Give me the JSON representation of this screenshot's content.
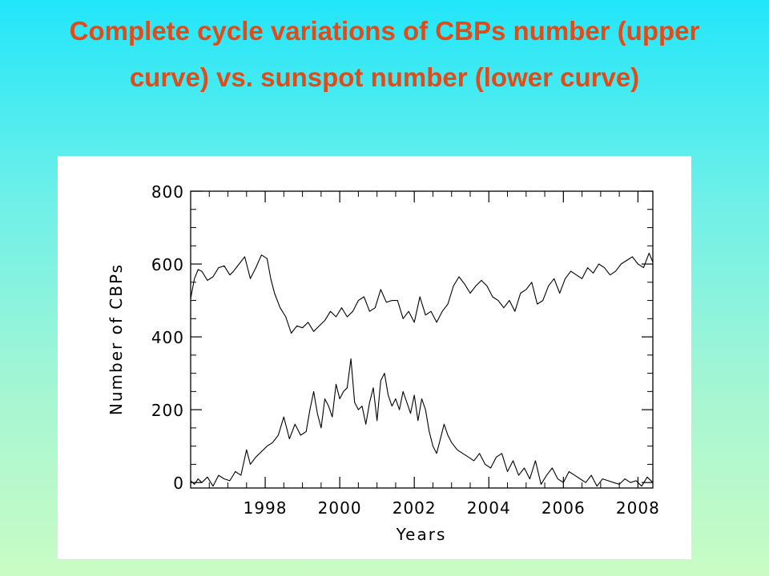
{
  "slide": {
    "title": "Complete cycle variations of CBPs number (upper curve) vs. sunspot number (lower curve)"
  },
  "colors": {
    "background_top": "#22e6fa",
    "background_bottom": "#c9fcc4",
    "title": "#e24a18",
    "plot_background": "#ffffff",
    "line": "#000000"
  },
  "chart_data": {
    "type": "line",
    "title": "",
    "xlabel": "Years",
    "ylabel": "Number of CBPs",
    "xlim": [
      1996.0,
      2008.4
    ],
    "ylim": [
      -15,
      800
    ],
    "x_ticks": [
      1998,
      2000,
      2002,
      2004,
      2006,
      2008
    ],
    "y_ticks": [
      0,
      200,
      400,
      600,
      800
    ],
    "grid": false,
    "legend": "none",
    "series": [
      {
        "x": [
          1996.0,
          1996.1,
          1996.2,
          1996.3,
          1996.45,
          1996.6,
          1996.75,
          1996.9,
          1997.05,
          1997.15,
          1997.3,
          1997.45,
          1997.6,
          1997.75,
          1997.9,
          1998.05,
          1998.15,
          1998.25,
          1998.4,
          1998.55,
          1998.7,
          1998.85,
          1999.0,
          1999.15,
          1999.3,
          1999.45,
          1999.6,
          1999.75,
          1999.9,
          2000.05,
          2000.2,
          2000.35,
          2000.5,
          2000.65,
          2000.8,
          2000.95,
          2001.1,
          2001.25,
          2001.4,
          2001.55,
          2001.7,
          2001.85,
          2002.0,
          2002.15,
          2002.3,
          2002.45,
          2002.6,
          2002.75,
          2002.9,
          2003.05,
          2003.2,
          2003.35,
          2003.5,
          2003.65,
          2003.8,
          2003.95,
          2004.1,
          2004.25,
          2004.4,
          2004.55,
          2004.7,
          2004.85,
          2005.0,
          2005.15,
          2005.3,
          2005.45,
          2005.6,
          2005.75,
          2005.9,
          2006.05,
          2006.2,
          2006.35,
          2006.5,
          2006.65,
          2006.8,
          2006.95,
          2007.1,
          2007.25,
          2007.4,
          2007.55,
          2007.7,
          2007.85,
          2008.0,
          2008.15,
          2008.3,
          2008.4
        ],
        "values": [
          505,
          560,
          585,
          580,
          555,
          565,
          590,
          595,
          570,
          580,
          600,
          620,
          560,
          590,
          625,
          615,
          560,
          520,
          480,
          455,
          410,
          430,
          425,
          440,
          415,
          430,
          445,
          470,
          455,
          480,
          455,
          470,
          500,
          510,
          470,
          480,
          530,
          495,
          500,
          500,
          450,
          470,
          440,
          510,
          460,
          470,
          440,
          470,
          490,
          540,
          565,
          545,
          520,
          540,
          555,
          540,
          510,
          500,
          480,
          500,
          470,
          520,
          530,
          550,
          490,
          500,
          540,
          560,
          520,
          560,
          580,
          570,
          560,
          590,
          575,
          600,
          590,
          570,
          580,
          600,
          610,
          620,
          600,
          590,
          630,
          605
        ]
      },
      {
        "x": [
          1996.0,
          1996.1,
          1996.2,
          1996.3,
          1996.45,
          1996.6,
          1996.75,
          1996.9,
          1997.05,
          1997.2,
          1997.35,
          1997.5,
          1997.6,
          1997.75,
          1997.9,
          1998.05,
          1998.2,
          1998.35,
          1998.5,
          1998.65,
          1998.8,
          1998.95,
          1999.1,
          1999.2,
          1999.3,
          1999.4,
          1999.5,
          1999.6,
          1999.7,
          1999.8,
          1999.9,
          2000.0,
          2000.1,
          2000.2,
          2000.3,
          2000.4,
          2000.5,
          2000.6,
          2000.7,
          2000.8,
          2000.9,
          2001.0,
          2001.1,
          2001.2,
          2001.3,
          2001.4,
          2001.5,
          2001.6,
          2001.7,
          2001.8,
          2001.9,
          2002.0,
          2002.1,
          2002.2,
          2002.3,
          2002.4,
          2002.5,
          2002.6,
          2002.7,
          2002.8,
          2002.9,
          2003.0,
          2003.15,
          2003.3,
          2003.45,
          2003.6,
          2003.75,
          2003.9,
          2004.05,
          2004.2,
          2004.35,
          2004.5,
          2004.65,
          2004.8,
          2004.95,
          2005.1,
          2005.25,
          2005.4,
          2005.55,
          2005.7,
          2005.85,
          2006.0,
          2006.15,
          2006.3,
          2006.45,
          2006.6,
          2006.75,
          2006.9,
          2007.05,
          2007.2,
          2007.35,
          2007.5,
          2007.65,
          2007.8,
          2007.95,
          2008.1,
          2008.25,
          2008.4
        ],
        "values": [
          5,
          -5,
          10,
          0,
          15,
          -10,
          20,
          10,
          5,
          30,
          20,
          90,
          50,
          70,
          85,
          100,
          110,
          130,
          180,
          120,
          160,
          130,
          140,
          200,
          250,
          190,
          150,
          230,
          210,
          180,
          270,
          230,
          250,
          260,
          340,
          220,
          200,
          210,
          160,
          220,
          260,
          170,
          280,
          300,
          240,
          210,
          230,
          200,
          250,
          220,
          190,
          240,
          170,
          230,
          200,
          140,
          100,
          80,
          120,
          160,
          130,
          110,
          90,
          80,
          70,
          60,
          80,
          50,
          40,
          70,
          80,
          30,
          60,
          20,
          40,
          10,
          60,
          -5,
          20,
          40,
          10,
          0,
          30,
          20,
          10,
          0,
          20,
          -10,
          10,
          5,
          0,
          -5,
          10,
          0,
          5,
          -10,
          15,
          0
        ]
      }
    ]
  }
}
